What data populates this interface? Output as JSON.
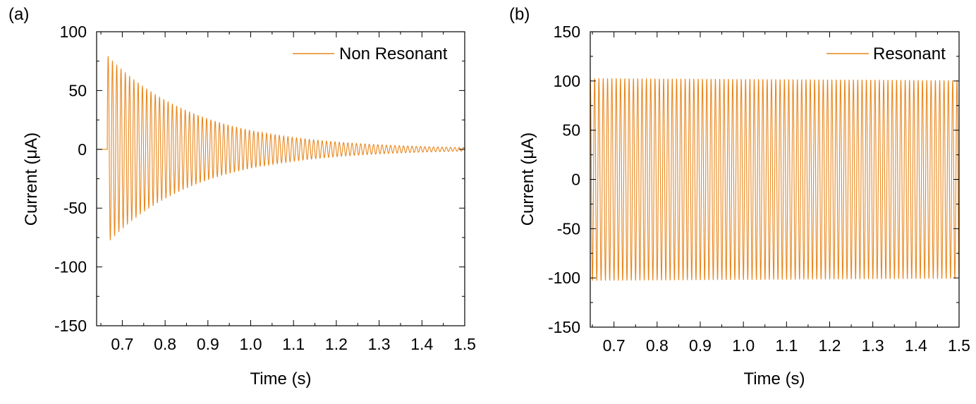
{
  "chart_data": [
    {
      "type": "line",
      "panel_label": "(a)",
      "title": "",
      "xlabel": "Time (s)",
      "ylabel": "Current (μA)",
      "xlim": [
        0.64,
        1.5
      ],
      "ylim": [
        -150,
        100
      ],
      "xticks": [
        0.7,
        0.8,
        0.9,
        1.0,
        1.1,
        1.2,
        1.3,
        1.4,
        1.5
      ],
      "xtick_labels": [
        "0.7",
        "0.8",
        "0.9",
        "1.0",
        "1.1",
        "1.2",
        "1.3",
        "1.4",
        "1.5"
      ],
      "yticks": [
        -150,
        -100,
        -50,
        0,
        50,
        100
      ],
      "ytick_labels": [
        "-150",
        "-100",
        "-50",
        "0",
        "50",
        "100"
      ],
      "legend_position": "top-right",
      "line_color": "#E8871E",
      "series": [
        {
          "name": "Non Resonant",
          "description": "Damped oscillation starting at 0.665 s",
          "onset_time": 0.665,
          "initial_amplitude": 80,
          "decay_time_constant": 0.21,
          "frequency_hz": 100,
          "envelope_samples": [
            {
              "x": 0.67,
              "y": 80
            },
            {
              "x": 0.7,
              "y": 70
            },
            {
              "x": 0.8,
              "y": 42
            },
            {
              "x": 0.9,
              "y": 25
            },
            {
              "x": 1.0,
              "y": 15
            },
            {
              "x": 1.1,
              "y": 8
            },
            {
              "x": 1.2,
              "y": 5
            },
            {
              "x": 1.3,
              "y": 3
            },
            {
              "x": 1.4,
              "y": 2
            },
            {
              "x": 1.5,
              "y": 1
            }
          ]
        }
      ],
      "grid": false
    },
    {
      "type": "line",
      "panel_label": "(b)",
      "title": "",
      "xlabel": "Time (s)",
      "ylabel": "Current (μA)",
      "xlim": [
        0.645,
        1.5
      ],
      "ylim": [
        -150,
        150
      ],
      "xticks": [
        0.7,
        0.8,
        0.9,
        1.0,
        1.1,
        1.2,
        1.3,
        1.4,
        1.5
      ],
      "xtick_labels": [
        "0.7",
        "0.8",
        "0.9",
        "1.0",
        "1.1",
        "1.2",
        "1.3",
        "1.4",
        "1.5"
      ],
      "yticks": [
        -150,
        -100,
        -50,
        0,
        50,
        100,
        150
      ],
      "ytick_labels": [
        "-150",
        "-100",
        "-50",
        "0",
        "50",
        "100",
        "150"
      ],
      "legend_position": "top-right",
      "line_color": "#E8871E",
      "series": [
        {
          "name": "Resonant",
          "description": "Sustained oscillation of constant amplitude",
          "amplitude": 103,
          "frequency_hz": 100
        }
      ],
      "grid": false
    }
  ]
}
